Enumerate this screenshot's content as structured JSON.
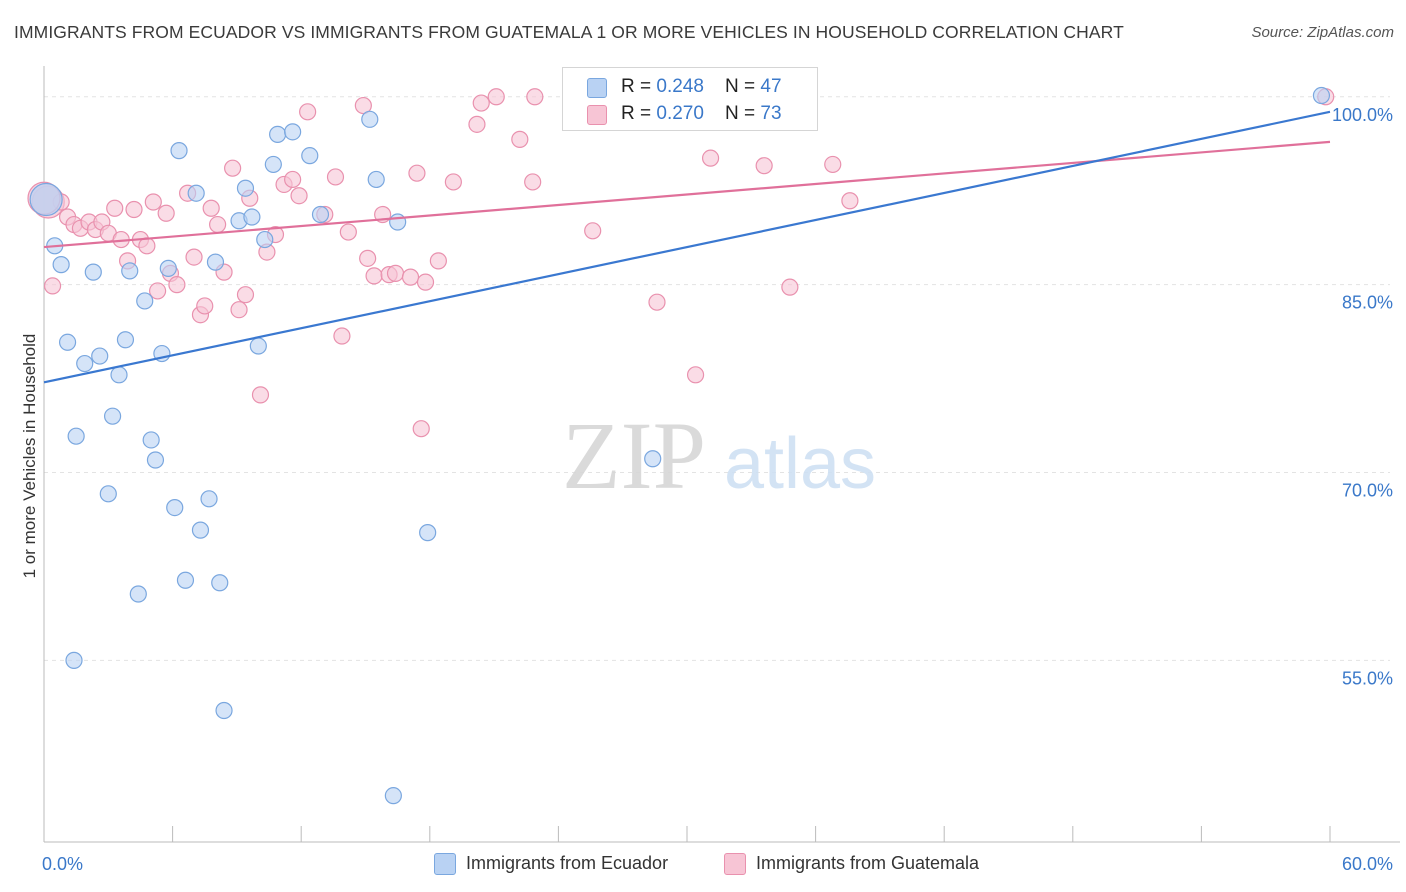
{
  "title": "IMMIGRANTS FROM ECUADOR VS IMMIGRANTS FROM GUATEMALA 1 OR MORE VEHICLES IN HOUSEHOLD CORRELATION CHART",
  "source": "Source: ZipAtlas.com",
  "watermark": {
    "zip": "ZIP",
    "atlas": "atlas"
  },
  "legend": {
    "ecuador": {
      "r_label": "R = ",
      "r_value": "0.248",
      "n_label": "N = ",
      "n_value": "47"
    },
    "guatemala": {
      "r_label": "R = ",
      "r_value": "0.270",
      "n_label": "N = ",
      "n_value": "73"
    }
  },
  "colors": {
    "ecuador_fill": "#b9d2f3",
    "ecuador_stroke": "#7aa7df",
    "ecuador_line": "#3a78d0",
    "guatemala_fill": "#f7c5d5",
    "guatemala_stroke": "#e991ae",
    "guatemala_line": "#e0709a",
    "tick_label": "#3a78c9",
    "grid": "#e3e3e3"
  },
  "chart_data": {
    "type": "scatter",
    "title": "IMMIGRANTS FROM ECUADOR VS IMMIGRANTS FROM GUATEMALA 1 OR MORE VEHICLES IN HOUSEHOLD CORRELATION CHART",
    "xlabel": "",
    "ylabel": "1 or more Vehicles in Household",
    "xlim": [
      0,
      60
    ],
    "ylim": [
      40.5,
      101.5
    ],
    "x_tick_labels": [
      "0.0%",
      "60.0%"
    ],
    "y_ticks": [
      55,
      70,
      85,
      100
    ],
    "y_tick_labels": [
      "55.0%",
      "70.0%",
      "85.0%",
      "100.0%"
    ],
    "grid": true,
    "legend_position": "top-center",
    "series": [
      {
        "name": "Immigrants from Ecuador",
        "color": "#b9d2f3",
        "trend": [
          [
            0,
            77.2
          ],
          [
            60,
            98.8
          ]
        ],
        "points": [
          [
            0.1,
            91.8
          ],
          [
            0.5,
            88.1
          ],
          [
            0.8,
            86.6
          ],
          [
            1.1,
            80.4
          ],
          [
            1.4,
            55.0
          ],
          [
            1.5,
            72.9
          ],
          [
            1.9,
            78.7
          ],
          [
            2.3,
            86.0
          ],
          [
            2.6,
            79.3
          ],
          [
            3.0,
            68.3
          ],
          [
            3.2,
            74.5
          ],
          [
            3.5,
            77.8
          ],
          [
            3.8,
            80.6
          ],
          [
            4.0,
            86.1
          ],
          [
            4.4,
            60.3
          ],
          [
            4.7,
            83.7
          ],
          [
            5.0,
            72.6
          ],
          [
            5.2,
            71.0
          ],
          [
            5.5,
            79.5
          ],
          [
            5.8,
            86.3
          ],
          [
            6.1,
            67.2
          ],
          [
            6.3,
            95.7
          ],
          [
            6.6,
            61.4
          ],
          [
            7.1,
            92.3
          ],
          [
            7.3,
            65.4
          ],
          [
            7.7,
            67.9
          ],
          [
            8.0,
            86.8
          ],
          [
            8.2,
            61.2
          ],
          [
            8.4,
            51.0
          ],
          [
            9.1,
            90.1
          ],
          [
            9.4,
            92.7
          ],
          [
            9.7,
            90.4
          ],
          [
            10.0,
            80.1
          ],
          [
            10.3,
            88.6
          ],
          [
            10.7,
            94.6
          ],
          [
            10.9,
            97.0
          ],
          [
            11.6,
            97.2
          ],
          [
            12.4,
            95.3
          ],
          [
            12.9,
            90.6
          ],
          [
            15.2,
            98.2
          ],
          [
            15.5,
            93.4
          ],
          [
            16.3,
            44.2
          ],
          [
            16.5,
            90.0
          ],
          [
            17.9,
            65.2
          ],
          [
            26.0,
            98.9
          ],
          [
            28.4,
            71.1
          ],
          [
            59.6,
            100.1
          ]
        ]
      },
      {
        "name": "Immigrants from Guatemala",
        "color": "#f7c5d5",
        "trend": [
          [
            0,
            88.0
          ],
          [
            60,
            96.4
          ]
        ],
        "points": [
          [
            0.2,
            91.6
          ],
          [
            0.4,
            84.9
          ],
          [
            0.8,
            91.6
          ],
          [
            1.1,
            90.4
          ],
          [
            1.4,
            89.8
          ],
          [
            1.7,
            89.5
          ],
          [
            2.1,
            90.0
          ],
          [
            2.4,
            89.4
          ],
          [
            2.7,
            90.0
          ],
          [
            3.0,
            89.1
          ],
          [
            3.3,
            91.1
          ],
          [
            3.6,
            88.6
          ],
          [
            3.9,
            86.9
          ],
          [
            4.2,
            91.0
          ],
          [
            4.5,
            88.6
          ],
          [
            4.8,
            88.1
          ],
          [
            5.1,
            91.6
          ],
          [
            5.3,
            84.5
          ],
          [
            5.7,
            90.7
          ],
          [
            5.9,
            85.9
          ],
          [
            6.2,
            85.0
          ],
          [
            6.7,
            92.3
          ],
          [
            7.0,
            87.2
          ],
          [
            7.3,
            82.6
          ],
          [
            7.5,
            83.3
          ],
          [
            7.8,
            91.1
          ],
          [
            8.1,
            89.8
          ],
          [
            8.4,
            86.0
          ],
          [
            8.8,
            94.3
          ],
          [
            9.1,
            83.0
          ],
          [
            9.4,
            84.2
          ],
          [
            9.6,
            91.9
          ],
          [
            10.1,
            76.2
          ],
          [
            10.4,
            87.6
          ],
          [
            10.8,
            89.0
          ],
          [
            11.2,
            93.0
          ],
          [
            11.6,
            93.4
          ],
          [
            11.9,
            92.1
          ],
          [
            12.3,
            98.8
          ],
          [
            13.1,
            90.6
          ],
          [
            13.6,
            93.6
          ],
          [
            13.9,
            80.9
          ],
          [
            14.2,
            89.2
          ],
          [
            14.9,
            99.3
          ],
          [
            15.1,
            87.1
          ],
          [
            15.4,
            85.7
          ],
          [
            15.8,
            90.6
          ],
          [
            16.1,
            85.8
          ],
          [
            16.4,
            85.9
          ],
          [
            17.1,
            85.6
          ],
          [
            17.4,
            93.9
          ],
          [
            17.6,
            73.5
          ],
          [
            17.8,
            85.2
          ],
          [
            18.4,
            86.9
          ],
          [
            19.1,
            93.2
          ],
          [
            20.2,
            97.8
          ],
          [
            20.4,
            99.5
          ],
          [
            21.1,
            100.0
          ],
          [
            22.2,
            96.6
          ],
          [
            22.8,
            93.2
          ],
          [
            22.9,
            100.0
          ],
          [
            24.9,
            100.0
          ],
          [
            25.6,
            89.3
          ],
          [
            28.0,
            100.0
          ],
          [
            28.6,
            83.6
          ],
          [
            30.4,
            77.8
          ],
          [
            31.1,
            95.1
          ],
          [
            33.6,
            94.5
          ],
          [
            34.8,
            84.8
          ],
          [
            36.8,
            94.6
          ],
          [
            37.6,
            91.7
          ],
          [
            59.8,
            100.0
          ],
          [
            0.0,
            91.9
          ]
        ]
      }
    ]
  }
}
